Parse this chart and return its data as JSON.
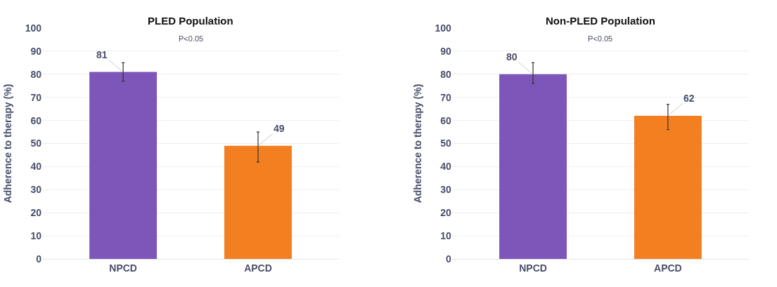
{
  "chart_data": [
    {
      "type": "bar",
      "title": "PLED Population",
      "ylabel": "Adherence to therapy (%)",
      "categories": [
        "NPCD",
        "APCD"
      ],
      "values": [
        81,
        49
      ],
      "colors": [
        "#7e55b8",
        "#f47f20"
      ],
      "errors": [
        [
          77,
          85
        ],
        [
          42,
          55
        ]
      ],
      "ylim": [
        0,
        100
      ],
      "yticks": [
        0,
        10,
        20,
        30,
        40,
        50,
        60,
        70,
        80,
        90,
        100
      ],
      "grid": "y",
      "data_labels": true,
      "annotations": [
        "P<0.05"
      ]
    },
    {
      "type": "bar",
      "title": "Non-PLED Population",
      "ylabel": "Adherence to therapy (%)",
      "categories": [
        "NPCD",
        "APCD"
      ],
      "values": [
        80,
        62
      ],
      "colors": [
        "#7e55b8",
        "#f47f20"
      ],
      "errors": [
        [
          76,
          85
        ],
        [
          56,
          67
        ]
      ],
      "ylim": [
        0,
        100
      ],
      "yticks": [
        0,
        10,
        20,
        30,
        40,
        50,
        60,
        70,
        80,
        90,
        100
      ],
      "grid": "y",
      "data_labels": true,
      "annotations": [
        "P<0.05"
      ]
    }
  ]
}
